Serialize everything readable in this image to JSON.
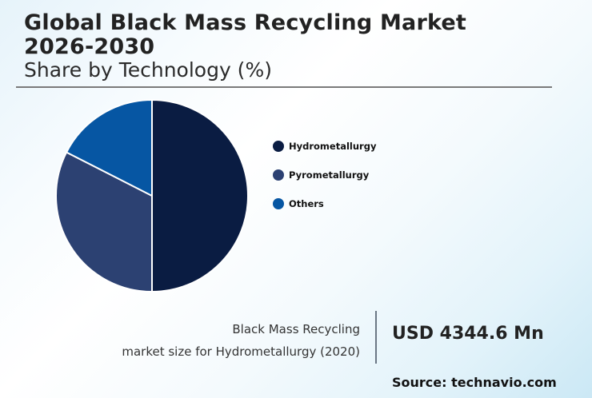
{
  "header": {
    "title_line1": "Global Black Mass Recycling Market",
    "title_line2": "2026-2030",
    "subtitle": "Share by Technology (%)"
  },
  "legend": [
    {
      "label": "Hydrometallurgy",
      "color": "#0a1c42"
    },
    {
      "label": "Pyrometallurgy",
      "color": "#2c4172"
    },
    {
      "label": "Others",
      "color": "#0656a3"
    }
  ],
  "callout": {
    "description_line1": "Black Mass Recycling",
    "description_line2": "market size for Hydrometallurgy (2020)",
    "value": "USD 4344.6 Mn"
  },
  "source": "Source: technavio.com",
  "chart_data": {
    "type": "pie",
    "title": "Global Black Mass Recycling Market 2026-2030",
    "subtitle": "Share by Technology (%)",
    "categories": [
      "Hydrometallurgy",
      "Pyrometallurgy",
      "Others"
    ],
    "values": [
      50,
      32.5,
      17.5
    ],
    "colors": [
      "#0a1c42",
      "#2c4172",
      "#0656a3"
    ],
    "start_angle": "12 o'clock, clockwise",
    "legend_position": "right",
    "annotation": "Black Mass Recycling market size for Hydrometallurgy (2020): USD 4344.6 Mn"
  }
}
